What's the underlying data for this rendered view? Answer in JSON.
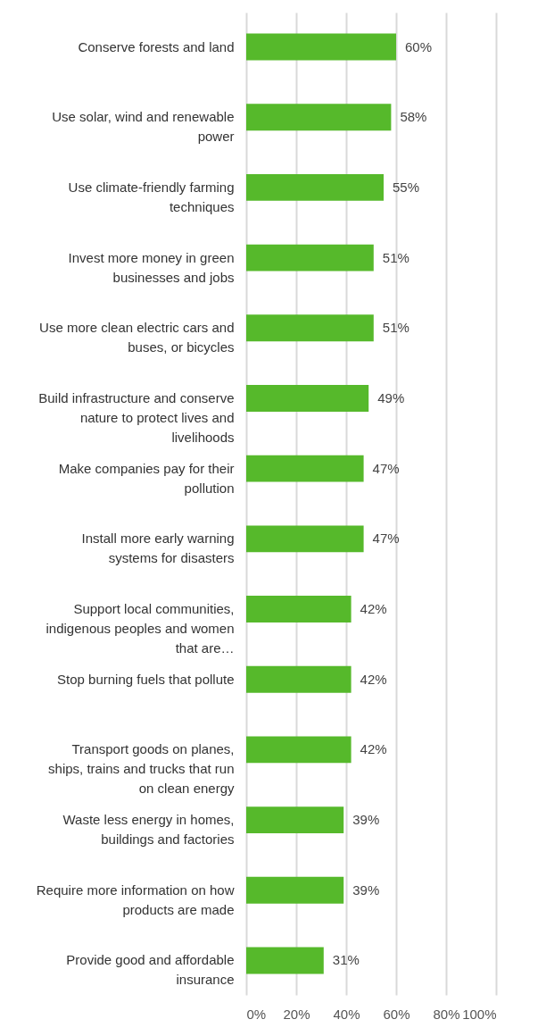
{
  "chart_data": {
    "type": "bar",
    "orientation": "horizontal",
    "categories": [
      "Conserve forests and land",
      "Use solar, wind and renewable power",
      "Use climate-friendly farming techniques",
      "Invest more money in green businesses and jobs",
      "Use more clean electric cars and buses, or bicycles",
      "Build infrastructure and conserve nature to protect lives and livelihoods",
      "Make companies pay for their pollution",
      "Install more early warning systems for disasters",
      "Support local communities, indigenous peoples and women that are…",
      "Stop burning fuels that pollute",
      "Transport goods on planes, ships, trains and trucks that run on clean energy",
      "Waste less energy in homes, buildings and factories",
      "Require more information on how products are made",
      "Provide good and affordable insurance"
    ],
    "values": [
      60,
      58,
      55,
      51,
      51,
      49,
      47,
      47,
      42,
      42,
      42,
      39,
      39,
      31
    ],
    "value_labels": [
      "60%",
      "58%",
      "55%",
      "51%",
      "51%",
      "49%",
      "47%",
      "47%",
      "42%",
      "42%",
      "42%",
      "39%",
      "39%",
      "31%"
    ],
    "color": "#56b92b",
    "xlim": [
      0,
      100
    ],
    "xticks": [
      {
        "value": 0,
        "label": "0%"
      },
      {
        "value": 20,
        "label": "20%"
      },
      {
        "value": 40,
        "label": "40%"
      },
      {
        "value": 60,
        "label": "60%"
      },
      {
        "value": 80,
        "label": "80%"
      },
      {
        "value": 100,
        "label": "100%"
      }
    ],
    "grid": "x"
  }
}
